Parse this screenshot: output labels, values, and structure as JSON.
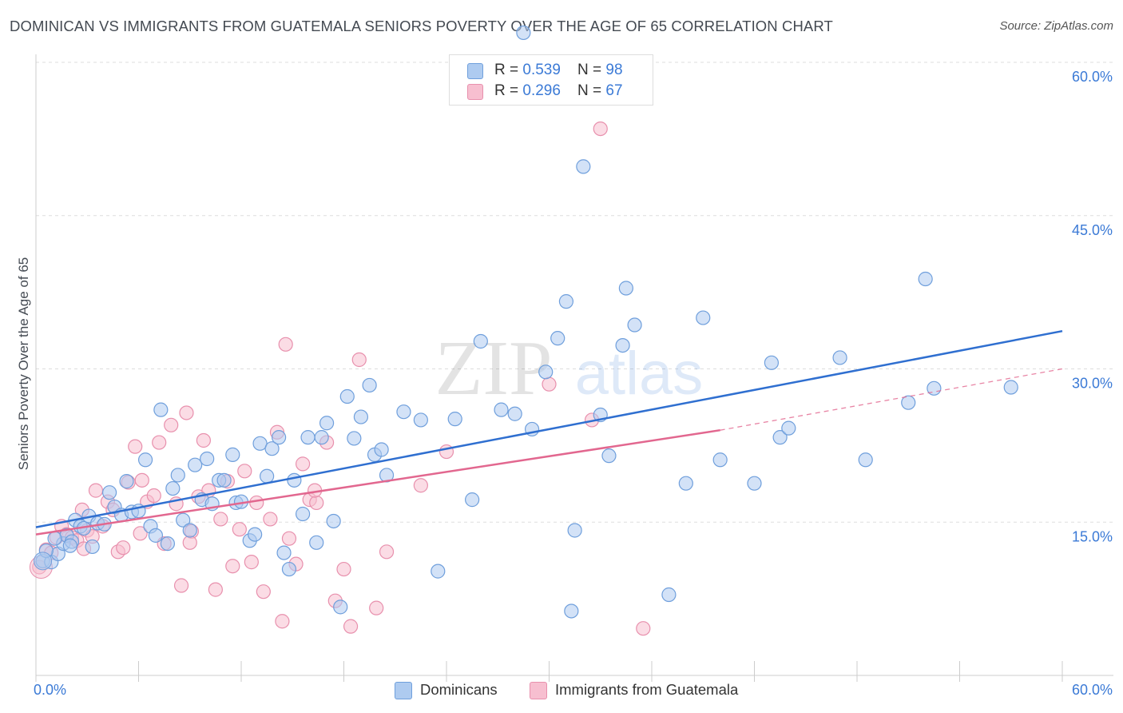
{
  "header": {
    "title": "DOMINICAN VS IMMIGRANTS FROM GUATEMALA SENIORS POVERTY OVER THE AGE OF 65 CORRELATION CHART",
    "source": "Source: ZipAtlas.com"
  },
  "watermark": {
    "zip": "ZIP",
    "atlas": "atlas"
  },
  "legend_box": {
    "rows": [
      {
        "r_label": "R = ",
        "r_value": "0.539",
        "n_label": "N = ",
        "n_value": "98"
      },
      {
        "r_label": "R = ",
        "r_value": "0.296",
        "n_label": "N = ",
        "n_value": "67"
      }
    ]
  },
  "bottom_legend": {
    "series1": "Dominicans",
    "series2": "Immigrants from Guatemala"
  },
  "colors": {
    "blue_fill": "#aecbf0",
    "blue_stroke": "#6f9fdc",
    "blue_line": "#2f6fd0",
    "pink_fill": "#f7bfd0",
    "pink_stroke": "#e890ad",
    "pink_line": "#e2678f",
    "tick_label": "#3b7ad6",
    "grid": "#dddddd"
  },
  "chart_data": {
    "type": "scatter",
    "title": "DOMINICAN VS IMMIGRANTS FROM GUATEMALA SENIORS POVERTY OVER THE AGE OF 65 CORRELATION CHART",
    "xlabel": "",
    "ylabel": "Seniors Poverty Over the Age of 65",
    "xlim": [
      0,
      60
    ],
    "ylim": [
      0,
      60
    ],
    "x_tick_labels": [
      "0.0%",
      "60.0%"
    ],
    "y_ticks": [
      15,
      30,
      45,
      60
    ],
    "y_tick_labels": [
      "15.0%",
      "30.0%",
      "45.0%",
      "60.0%"
    ],
    "grid": true,
    "legend_position": "top-center",
    "series": [
      {
        "name": "Dominicans",
        "r": 0.539,
        "n": 98,
        "trend": {
          "x": [
            0,
            60
          ],
          "y": [
            14.5,
            33.7
          ],
          "dashed_extension": false
        },
        "points": [
          [
            0.4,
            11.2
          ],
          [
            0.9,
            11.1
          ],
          [
            1.3,
            11.9
          ],
          [
            1.6,
            12.9
          ],
          [
            1.8,
            13.7
          ],
          [
            2.1,
            13.1
          ],
          [
            2.3,
            15.2
          ],
          [
            2.6,
            14.6
          ],
          [
            2.8,
            14.4
          ],
          [
            3.1,
            15.6
          ],
          [
            3.3,
            12.6
          ],
          [
            3.6,
            14.9
          ],
          [
            4.0,
            14.8
          ],
          [
            4.3,
            17.9
          ],
          [
            4.6,
            16.5
          ],
          [
            5.0,
            15.7
          ],
          [
            5.3,
            19.0
          ],
          [
            5.6,
            16.0
          ],
          [
            6.0,
            16.1
          ],
          [
            6.4,
            21.1
          ],
          [
            6.7,
            14.6
          ],
          [
            7.0,
            13.7
          ],
          [
            7.3,
            26.0
          ],
          [
            7.7,
            12.9
          ],
          [
            8.0,
            18.3
          ],
          [
            8.3,
            19.6
          ],
          [
            8.6,
            15.2
          ],
          [
            9.0,
            14.2
          ],
          [
            9.3,
            20.6
          ],
          [
            9.7,
            17.2
          ],
          [
            10.0,
            21.2
          ],
          [
            10.3,
            16.8
          ],
          [
            10.7,
            19.1
          ],
          [
            11.0,
            19.1
          ],
          [
            11.5,
            21.6
          ],
          [
            11.7,
            16.9
          ],
          [
            12.0,
            17.0
          ],
          [
            12.5,
            13.2
          ],
          [
            12.8,
            13.8
          ],
          [
            13.1,
            22.7
          ],
          [
            13.5,
            19.5
          ],
          [
            13.8,
            22.2
          ],
          [
            14.2,
            23.3
          ],
          [
            14.5,
            12.0
          ],
          [
            14.8,
            10.4
          ],
          [
            15.1,
            19.1
          ],
          [
            15.6,
            15.8
          ],
          [
            15.9,
            23.3
          ],
          [
            16.4,
            13.0
          ],
          [
            16.7,
            23.3
          ],
          [
            17.0,
            24.7
          ],
          [
            17.4,
            15.1
          ],
          [
            17.8,
            6.7
          ],
          [
            18.2,
            27.3
          ],
          [
            18.6,
            23.2
          ],
          [
            19.0,
            25.3
          ],
          [
            19.5,
            28.4
          ],
          [
            19.8,
            21.6
          ],
          [
            20.2,
            22.1
          ],
          [
            20.5,
            19.6
          ],
          [
            21.5,
            25.8
          ],
          [
            22.5,
            25.0
          ],
          [
            23.5,
            10.2
          ],
          [
            24.5,
            25.1
          ],
          [
            25.5,
            17.2
          ],
          [
            26.0,
            32.7
          ],
          [
            27.2,
            26.0
          ],
          [
            28.5,
            62.9
          ],
          [
            28.0,
            25.6
          ],
          [
            29.0,
            24.1
          ],
          [
            29.8,
            29.7
          ],
          [
            30.5,
            33.0
          ],
          [
            31.0,
            36.6
          ],
          [
            31.3,
            6.3
          ],
          [
            31.5,
            14.2
          ],
          [
            32.0,
            49.8
          ],
          [
            33.0,
            25.5
          ],
          [
            33.5,
            21.5
          ],
          [
            34.3,
            32.3
          ],
          [
            34.5,
            37.9
          ],
          [
            35.0,
            34.3
          ],
          [
            37.0,
            7.9
          ],
          [
            38.0,
            18.8
          ],
          [
            39.0,
            35.0
          ],
          [
            40.0,
            21.1
          ],
          [
            42.0,
            18.8
          ],
          [
            43.0,
            30.6
          ],
          [
            43.5,
            23.3
          ],
          [
            44.0,
            24.2
          ],
          [
            47.0,
            31.1
          ],
          [
            48.5,
            21.1
          ],
          [
            51.0,
            26.7
          ],
          [
            52.0,
            38.8
          ],
          [
            52.5,
            28.1
          ],
          [
            57.0,
            28.2
          ],
          [
            0.6,
            12.2
          ],
          [
            1.1,
            13.4
          ],
          [
            2.0,
            12.7
          ]
        ]
      },
      {
        "name": "Immigrants from Guatemala",
        "r": 0.296,
        "n": 67,
        "trend": {
          "x": [
            0,
            40
          ],
          "y": [
            13.8,
            24.0
          ],
          "dashed_extension_to": [
            60,
            30.0
          ]
        },
        "points": [
          [
            0.2,
            10.6
          ],
          [
            0.6,
            12.3
          ],
          [
            0.9,
            12.0
          ],
          [
            1.2,
            13.5
          ],
          [
            1.5,
            14.6
          ],
          [
            1.8,
            13.8
          ],
          [
            2.1,
            13.5
          ],
          [
            2.4,
            13.2
          ],
          [
            2.7,
            16.2
          ],
          [
            3.0,
            14.2
          ],
          [
            3.3,
            13.6
          ],
          [
            3.5,
            18.1
          ],
          [
            3.9,
            14.6
          ],
          [
            4.2,
            17.0
          ],
          [
            4.5,
            16.2
          ],
          [
            4.8,
            12.1
          ],
          [
            5.1,
            12.5
          ],
          [
            5.4,
            18.9
          ],
          [
            5.8,
            22.4
          ],
          [
            6.1,
            13.9
          ],
          [
            6.5,
            17.0
          ],
          [
            6.9,
            17.6
          ],
          [
            7.2,
            22.8
          ],
          [
            7.5,
            12.9
          ],
          [
            7.9,
            24.5
          ],
          [
            8.2,
            16.8
          ],
          [
            8.5,
            8.8
          ],
          [
            8.8,
            25.7
          ],
          [
            9.1,
            14.1
          ],
          [
            9.5,
            17.5
          ],
          [
            9.8,
            23.0
          ],
          [
            10.1,
            18.1
          ],
          [
            10.5,
            8.4
          ],
          [
            10.8,
            15.3
          ],
          [
            11.2,
            19.0
          ],
          [
            11.5,
            10.7
          ],
          [
            11.9,
            14.3
          ],
          [
            12.2,
            20.0
          ],
          [
            12.6,
            11.1
          ],
          [
            12.9,
            16.9
          ],
          [
            13.3,
            8.2
          ],
          [
            13.7,
            15.3
          ],
          [
            14.1,
            23.8
          ],
          [
            14.4,
            5.3
          ],
          [
            14.8,
            13.4
          ],
          [
            14.6,
            32.4
          ],
          [
            15.2,
            10.9
          ],
          [
            15.6,
            20.7
          ],
          [
            16.0,
            17.2
          ],
          [
            16.4,
            16.9
          ],
          [
            17.0,
            22.8
          ],
          [
            17.5,
            7.3
          ],
          [
            18.0,
            10.4
          ],
          [
            18.4,
            4.8
          ],
          [
            18.9,
            30.9
          ],
          [
            19.9,
            6.6
          ],
          [
            20.5,
            12.1
          ],
          [
            22.5,
            18.6
          ],
          [
            24.0,
            21.9
          ],
          [
            30.0,
            28.5
          ],
          [
            32.5,
            25.0
          ],
          [
            33.0,
            53.5
          ],
          [
            35.5,
            4.6
          ],
          [
            6.2,
            19.1
          ],
          [
            9.0,
            13.0
          ],
          [
            2.8,
            12.4
          ],
          [
            16.3,
            18.1
          ]
        ]
      }
    ]
  }
}
